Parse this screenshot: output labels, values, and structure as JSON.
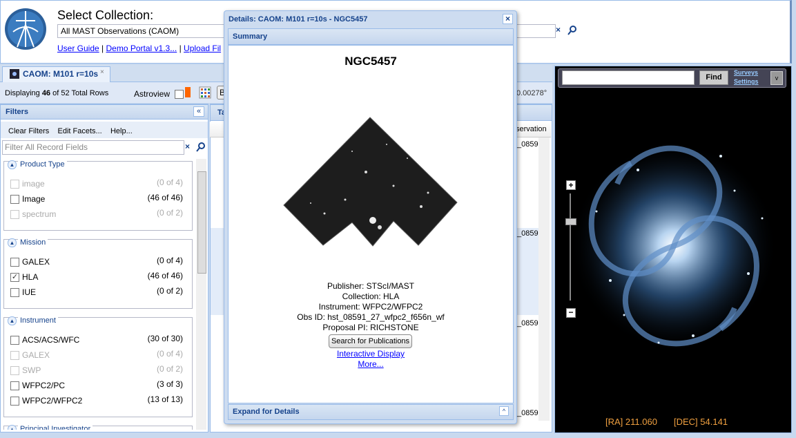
{
  "header": {
    "title": "Select Collection:",
    "collection": "All MAST Observations (CAOM)",
    "links": [
      "User Guide",
      "Demo Portal v1.3...",
      "Upload Fil"
    ],
    "link_separator": "|"
  },
  "tab": {
    "title": "CAOM: M101 r=10s"
  },
  "toolbar": {
    "status_prefix": "Displaying",
    "status_count": "46",
    "status_suffix": "of 52 Total Rows",
    "astroview": "Astroview",
    "button_partial": "B",
    "radius_partial": "0.00278°"
  },
  "filters": {
    "title": "Filters",
    "actions": [
      "Clear Filters",
      "Edit Facets...",
      "Help..."
    ],
    "placeholder": "Filter All Record Fields",
    "facets": [
      {
        "title": "Product Type",
        "items": [
          {
            "label": "image",
            "count": "(0 of 4)",
            "state": "disabled"
          },
          {
            "label": "Image",
            "count": "(46 of 46)",
            "state": "unchecked"
          },
          {
            "label": "spectrum",
            "count": "(0 of 2)",
            "state": "disabled"
          }
        ]
      },
      {
        "title": "Mission",
        "items": [
          {
            "label": "GALEX",
            "count": "(0 of 4)",
            "state": "unchecked"
          },
          {
            "label": "HLA",
            "count": "(46 of 46)",
            "state": "checked"
          },
          {
            "label": "IUE",
            "count": "(0 of 2)",
            "state": "unchecked"
          }
        ]
      },
      {
        "title": "Instrument",
        "items": [
          {
            "label": "ACS/ACS/WFC",
            "count": "(30 of 30)",
            "state": "unchecked"
          },
          {
            "label": "GALEX",
            "count": "(0 of 4)",
            "state": "disabled"
          },
          {
            "label": "SWP",
            "count": "(0 of 2)",
            "state": "disabled"
          },
          {
            "label": "WFPC2/PC",
            "count": "(3 of 3)",
            "state": "unchecked"
          },
          {
            "label": "WFPC2/WFPC2",
            "count": "(13 of 13)",
            "state": "unchecked"
          }
        ]
      },
      {
        "title": "Principal Investigator",
        "items": []
      }
    ]
  },
  "table": {
    "tab_partial": "Ta",
    "column_partial": "servation",
    "cells": [
      "_0859",
      "_0859",
      "_0859",
      "_0859"
    ]
  },
  "dialog": {
    "title": "Details: CAOM: M101 r=10s - NGC5457",
    "section": "Summary",
    "target": "NGC5457",
    "details": [
      "Publisher: STScI/MAST",
      "Collection: HLA",
      "Instrument: WFPC2/WFPC2",
      "Obs ID: hst_08591_27_wfpc2_f656n_wf",
      "Proposal PI: RICHSTONE"
    ],
    "button": "Search for Publications",
    "links": [
      "Interactive Display",
      "More..."
    ],
    "footer": "Expand for Details"
  },
  "astroview": {
    "find": "Find",
    "surveys": "Surveys",
    "settings": "Settings",
    "ra": "[RA] 211.060",
    "dec": "[DEC] 54.141"
  }
}
